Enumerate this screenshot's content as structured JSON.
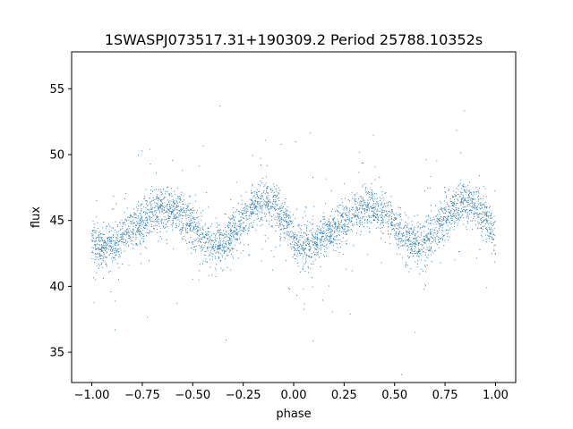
{
  "chart_data": {
    "type": "scatter",
    "title": "1SWASPJ073517.31+190309.2 Period 25788.10352s",
    "xlabel": "phase",
    "ylabel": "flux",
    "xlim": [
      -1.1,
      1.1
    ],
    "ylim": [
      32.7,
      57.8
    ],
    "xticks": [
      -1.0,
      -0.75,
      -0.5,
      -0.25,
      0.0,
      0.25,
      0.5,
      0.75,
      1.0
    ],
    "xtick_labels": [
      "−1.00",
      "−0.75",
      "−0.50",
      "−0.25",
      "0.00",
      "0.25",
      "0.50",
      "0.75",
      "1.00"
    ],
    "yticks": [
      35,
      40,
      45,
      50,
      55
    ],
    "ytick_labels": [
      "35",
      "40",
      "45",
      "50",
      "55"
    ],
    "grid": false,
    "marker_color": "#1f77b4",
    "series": [
      {
        "period_in_phase": 1.0,
        "x_range": [
          -1.0,
          1.0
        ],
        "curve": {
          "x": [
            0.0,
            0.05,
            0.1,
            0.15,
            0.2,
            0.25,
            0.3,
            0.35,
            0.4,
            0.45,
            0.5,
            0.55,
            0.6,
            0.65,
            0.7,
            0.75,
            0.8,
            0.85,
            0.9,
            0.95,
            1.0
          ],
          "y": [
            43.3,
            43.0,
            43.2,
            43.7,
            44.3,
            45.0,
            45.6,
            46.0,
            45.9,
            45.4,
            44.5,
            43.6,
            43.1,
            43.3,
            44.0,
            45.0,
            46.0,
            46.5,
            46.2,
            45.2,
            43.8
          ]
        },
        "scatter_width": 0.8,
        "n_points": 4000
      }
    ]
  }
}
